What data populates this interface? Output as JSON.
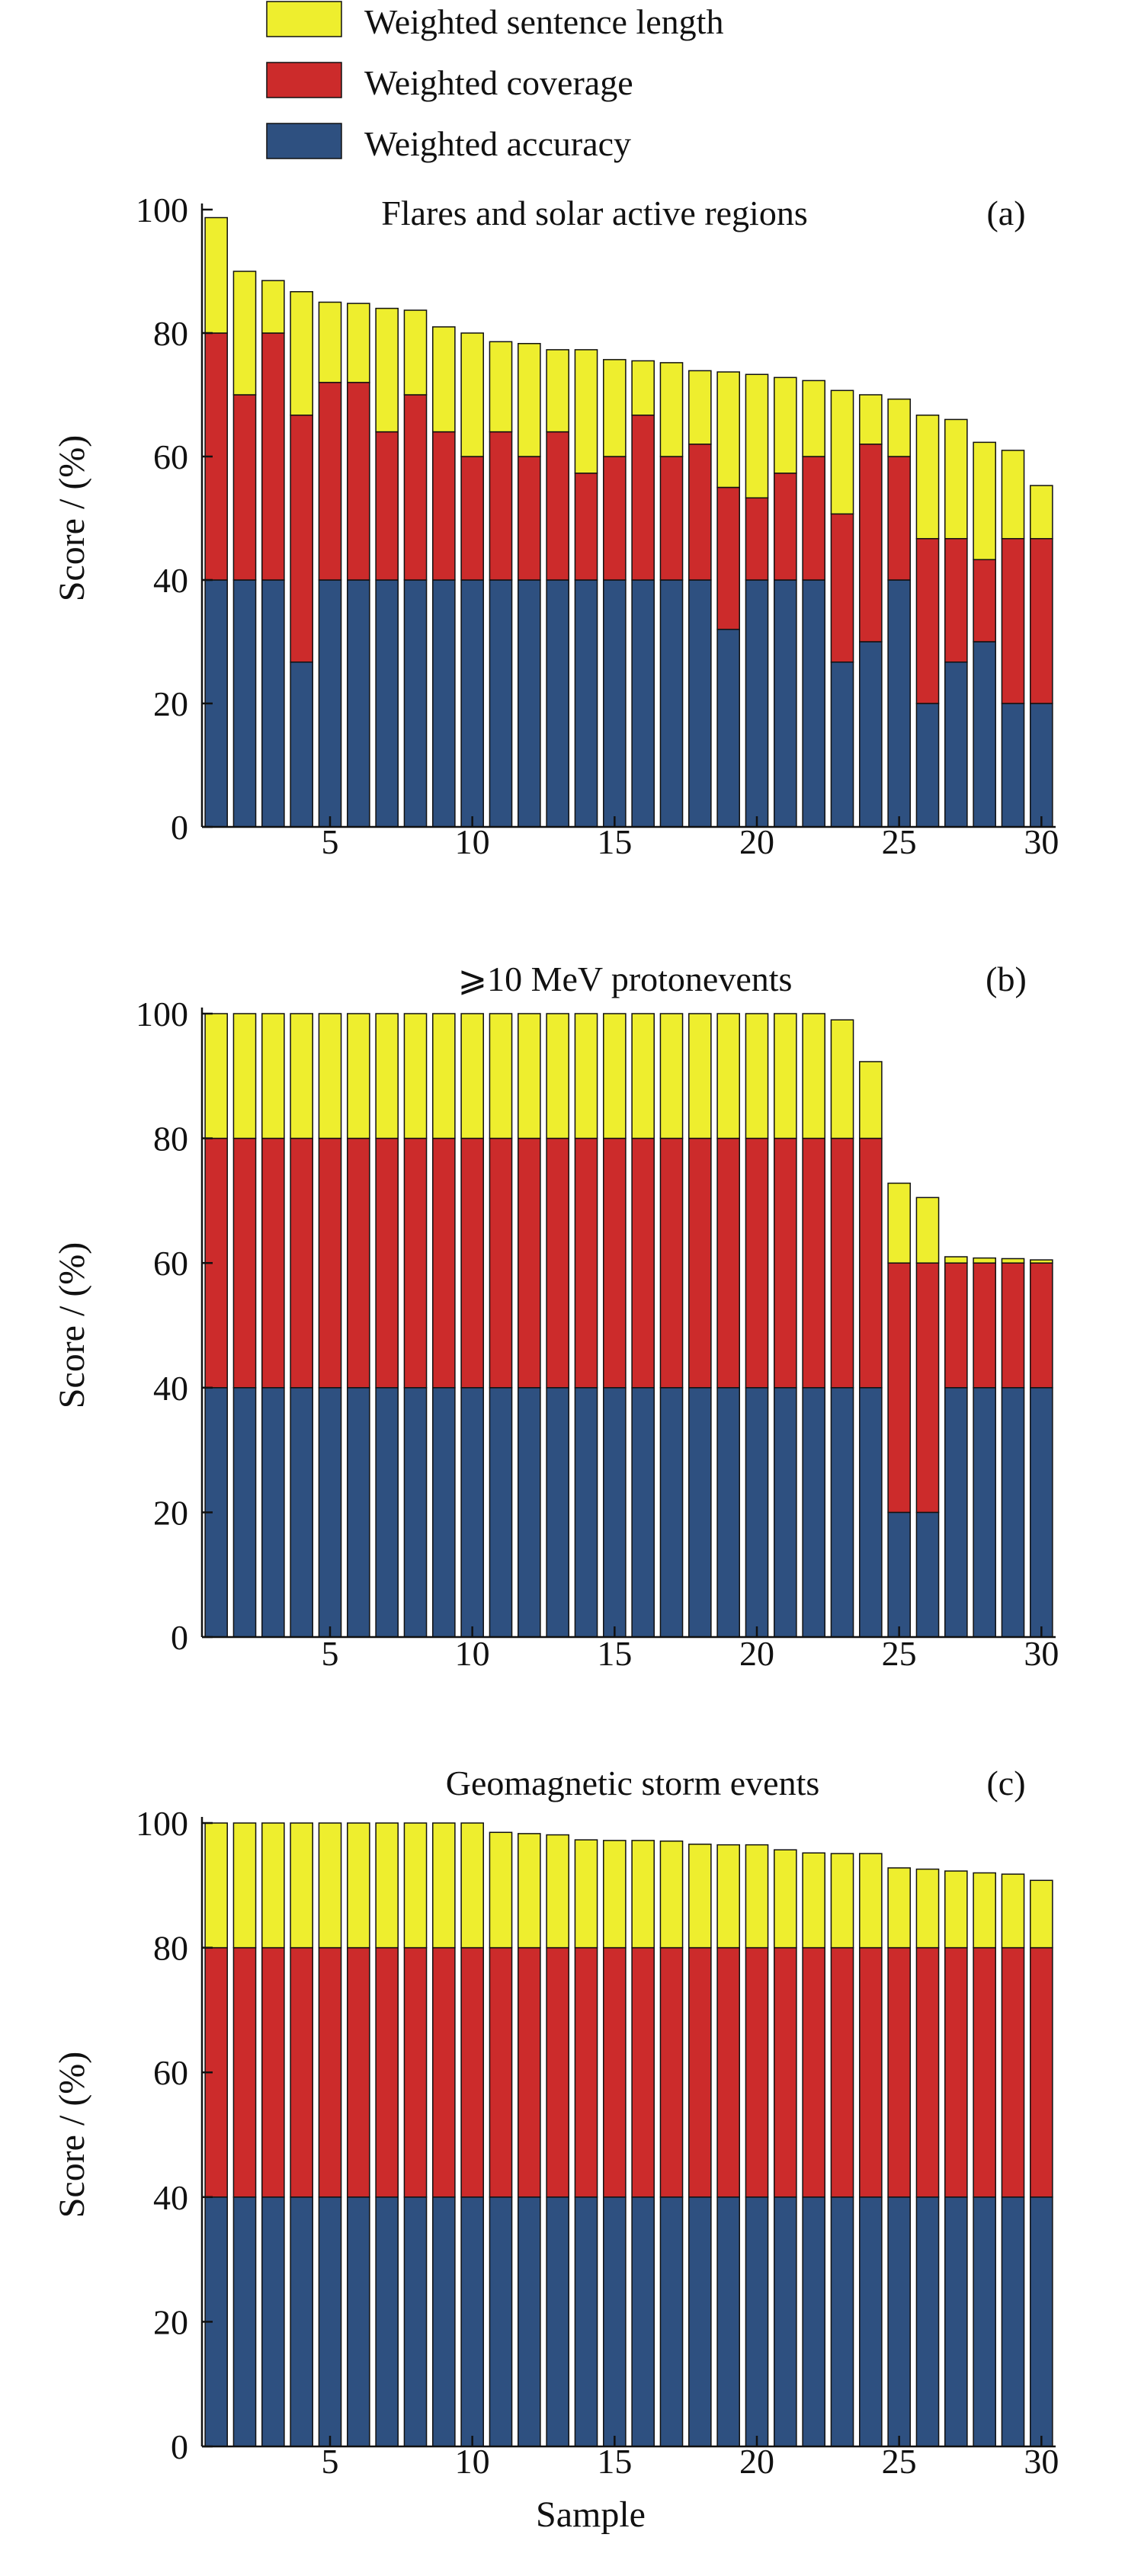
{
  "legend": {
    "position": "top",
    "items": [
      {
        "label": "Weighted sentence length",
        "color": "#eeee2e"
      },
      {
        "label": "Weighted coverage",
        "color": "#cc2b2b"
      },
      {
        "label": "Weighted accuracy",
        "color": "#2e5080"
      }
    ]
  },
  "colors": {
    "accuracy": "#2e5080",
    "coverage": "#cc2b2b",
    "length": "#eeee2e",
    "axis": "#111111",
    "bar_edge": "#111111"
  },
  "chart_data": [
    {
      "type": "bar",
      "stacked": true,
      "title": "Flares and solar active regions",
      "panel": "(a)",
      "xlabel": "",
      "ylabel": "Score / (%)",
      "ylim": [
        0,
        100
      ],
      "yticks": [
        0,
        20,
        40,
        60,
        80,
        100
      ],
      "xticks": [
        5,
        10,
        15,
        20,
        25,
        30
      ],
      "x": [
        1,
        2,
        3,
        4,
        5,
        6,
        7,
        8,
        9,
        10,
        11,
        12,
        13,
        14,
        15,
        16,
        17,
        18,
        19,
        20,
        21,
        22,
        23,
        24,
        25,
        26,
        27,
        28,
        29,
        30
      ],
      "series": [
        {
          "name": "Weighted accuracy",
          "values": [
            40,
            40,
            40,
            26.7,
            40,
            40,
            40,
            40,
            40,
            40,
            40,
            40,
            40,
            40,
            40,
            40,
            40,
            40,
            32,
            40,
            40,
            40,
            26.7,
            30,
            40,
            20,
            26.7,
            30,
            20,
            20
          ]
        },
        {
          "name": "Weighted coverage",
          "values": [
            40,
            30,
            40,
            40,
            32,
            32,
            24,
            30,
            24,
            20,
            24,
            20,
            24,
            17.3,
            20,
            26.7,
            20,
            22,
            23,
            13.3,
            17.3,
            20,
            24,
            32,
            20,
            26.7,
            20,
            13.3,
            26.7,
            26.7
          ]
        },
        {
          "name": "Weighted sentence length",
          "values": [
            18.7,
            20,
            8.5,
            20,
            13,
            12.8,
            20,
            13.7,
            17,
            20,
            14.6,
            18.3,
            13.3,
            20,
            15.7,
            8.8,
            15.2,
            11.9,
            18.7,
            20,
            15.5,
            12.3,
            20,
            8,
            9.3,
            20,
            19.3,
            19,
            14.3,
            8.6
          ]
        }
      ]
    },
    {
      "type": "bar",
      "stacked": true,
      "title": "⩾10 MeV protonevents",
      "panel": "(b)",
      "xlabel": "",
      "ylabel": "Score / (%)",
      "ylim": [
        0,
        100
      ],
      "yticks": [
        0,
        20,
        40,
        60,
        80,
        100
      ],
      "xticks": [
        5,
        10,
        15,
        20,
        25,
        30
      ],
      "x": [
        1,
        2,
        3,
        4,
        5,
        6,
        7,
        8,
        9,
        10,
        11,
        12,
        13,
        14,
        15,
        16,
        17,
        18,
        19,
        20,
        21,
        22,
        23,
        24,
        25,
        26,
        27,
        28,
        29,
        30
      ],
      "series": [
        {
          "name": "Weighted accuracy",
          "values": [
            40,
            40,
            40,
            40,
            40,
            40,
            40,
            40,
            40,
            40,
            40,
            40,
            40,
            40,
            40,
            40,
            40,
            40,
            40,
            40,
            40,
            40,
            40,
            40,
            20,
            20,
            40,
            40,
            40,
            40
          ]
        },
        {
          "name": "Weighted coverage",
          "values": [
            40,
            40,
            40,
            40,
            40,
            40,
            40,
            40,
            40,
            40,
            40,
            40,
            40,
            40,
            40,
            40,
            40,
            40,
            40,
            40,
            40,
            40,
            40,
            40,
            40,
            40,
            20,
            20,
            20,
            20
          ]
        },
        {
          "name": "Weighted sentence length",
          "values": [
            20,
            20,
            20,
            20,
            20,
            20,
            20,
            20,
            20,
            20,
            20,
            20,
            20,
            20,
            20,
            20,
            20,
            20,
            20,
            20,
            20,
            20,
            19,
            12.3,
            12.8,
            10.5,
            1,
            0.8,
            0.7,
            0.5
          ]
        }
      ]
    },
    {
      "type": "bar",
      "stacked": true,
      "title": "Geomagnetic storm events",
      "panel": "(c)",
      "xlabel": "Sample",
      "ylabel": "Score / (%)",
      "ylim": [
        0,
        100
      ],
      "yticks": [
        0,
        20,
        40,
        60,
        80,
        100
      ],
      "xticks": [
        5,
        10,
        15,
        20,
        25,
        30
      ],
      "x": [
        1,
        2,
        3,
        4,
        5,
        6,
        7,
        8,
        9,
        10,
        11,
        12,
        13,
        14,
        15,
        16,
        17,
        18,
        19,
        20,
        21,
        22,
        23,
        24,
        25,
        26,
        27,
        28,
        29,
        30
      ],
      "series": [
        {
          "name": "Weighted accuracy",
          "values": [
            40,
            40,
            40,
            40,
            40,
            40,
            40,
            40,
            40,
            40,
            40,
            40,
            40,
            40,
            40,
            40,
            40,
            40,
            40,
            40,
            40,
            40,
            40,
            40,
            40,
            40,
            40,
            40,
            40,
            40
          ]
        },
        {
          "name": "Weighted coverage",
          "values": [
            40,
            40,
            40,
            40,
            40,
            40,
            40,
            40,
            40,
            40,
            40,
            40,
            40,
            40,
            40,
            40,
            40,
            40,
            40,
            40,
            40,
            40,
            40,
            40,
            40,
            40,
            40,
            40,
            40,
            40
          ]
        },
        {
          "name": "Weighted sentence length",
          "values": [
            20,
            20,
            20,
            20,
            20,
            20,
            20,
            20,
            20,
            20,
            18.5,
            18.3,
            18.1,
            17.3,
            17.2,
            17.2,
            17.1,
            16.6,
            16.5,
            16.5,
            15.7,
            15.2,
            15.1,
            15.1,
            12.8,
            12.6,
            12.3,
            12,
            11.8,
            10.8
          ]
        }
      ]
    }
  ]
}
